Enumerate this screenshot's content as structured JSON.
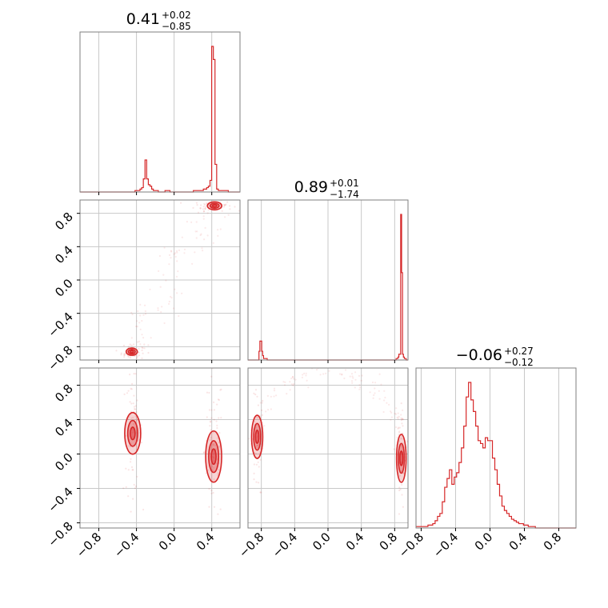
{
  "colors": {
    "series": "#d62728",
    "grid": "#c8c8c8",
    "frame": "#7f7f7f"
  },
  "chart_data": {
    "type": "corner",
    "grid": true,
    "parameters": [
      {
        "title": {
          "median": "0.41",
          "upper": "+0.02",
          "lower": "−0.85"
        },
        "range": [
          -1.0,
          0.7
        ]
      },
      {
        "title": {
          "median": "0.89",
          "upper": "+0.01",
          "lower": "−1.74"
        },
        "range": [
          -0.96,
          0.96
        ]
      },
      {
        "title": {
          "median": "−0.06",
          "upper": "+0.27",
          "lower": "−0.12"
        },
        "range": [
          -0.86,
          1.0
        ]
      }
    ],
    "ticks": {
      "param1": {
        "values": [
          -0.8,
          -0.4,
          0.0,
          0.4
        ],
        "labels": [
          "−0.8",
          "−0.4",
          "0.0",
          "0.4"
        ]
      },
      "param2": {
        "values": [
          -0.8,
          -0.4,
          0.0,
          0.4,
          0.8
        ],
        "labels": [
          "−0.8",
          "−0.4",
          "0.0",
          "0.4",
          "0.8"
        ]
      },
      "param3": {
        "values": [
          -0.8,
          -0.4,
          0.0,
          0.4,
          0.8
        ],
        "labels": [
          "−0.8",
          "−0.4",
          "0.0",
          "0.4",
          "0.8"
        ]
      }
    },
    "histograms": [
      {
        "parameter": 1,
        "x_range": [
          -1.0,
          0.7
        ],
        "counts": [
          0,
          0,
          0,
          0,
          0,
          0,
          0,
          0,
          0,
          0,
          0,
          0,
          0,
          0,
          0,
          0,
          0,
          0,
          0,
          0,
          0,
          0,
          0,
          0,
          0,
          0,
          0,
          0,
          0,
          0,
          0,
          0,
          0,
          1,
          1,
          1,
          2,
          3,
          9,
          22,
          9,
          5,
          4,
          2,
          1,
          1,
          1,
          0,
          0,
          0,
          0,
          1,
          1,
          1,
          0,
          0,
          0,
          0,
          0,
          0,
          0,
          0,
          0,
          0,
          0,
          0,
          0,
          0,
          1,
          1,
          1,
          1,
          1,
          1,
          2,
          2,
          3,
          4,
          8,
          100,
          91,
          19,
          2,
          1,
          1,
          1,
          1,
          1,
          1,
          0,
          0,
          0,
          0,
          0,
          0,
          0
        ]
      },
      {
        "parameter": 2,
        "x_range": [
          -0.96,
          0.96
        ],
        "counts": [
          0,
          0,
          0,
          0,
          0,
          0,
          0,
          0,
          0,
          0,
          0,
          0,
          6,
          13,
          13,
          6,
          3,
          1,
          1,
          1,
          1,
          0,
          0,
          0,
          0,
          0,
          0,
          0,
          0,
          0,
          0,
          0,
          0,
          0,
          0,
          0,
          0,
          0,
          0,
          0,
          0,
          0,
          0,
          0,
          0,
          0,
          0,
          0,
          0,
          0,
          0,
          0,
          0,
          0,
          0,
          0,
          0,
          0,
          0,
          0,
          0,
          0,
          0,
          0,
          0,
          0,
          0,
          0,
          0,
          0,
          0,
          0,
          0,
          0,
          0,
          0,
          0,
          0,
          0,
          0,
          0,
          0,
          0,
          0,
          0,
          0,
          0,
          0,
          0,
          0,
          0,
          0,
          0,
          0,
          0,
          0,
          0,
          0,
          0,
          0,
          0,
          0,
          0,
          0,
          0,
          0,
          0,
          0,
          0,
          0,
          0,
          0,
          0,
          0,
          0,
          0,
          0,
          0,
          0,
          0,
          0,
          0,
          0,
          0,
          0,
          0,
          0,
          0,
          0,
          0,
          0,
          0,
          0,
          0,
          0,
          0,
          0,
          0,
          0,
          0,
          0,
          0,
          0,
          0,
          0,
          0,
          0,
          0,
          0,
          0,
          0,
          0,
          0,
          0,
          0,
          0,
          0,
          0,
          0,
          0,
          0,
          0,
          1,
          1,
          2,
          4,
          4,
          100,
          60,
          4,
          2,
          1,
          1,
          0,
          0
        ]
      },
      {
        "parameter": 3,
        "x_range": [
          -0.86,
          1.0
        ],
        "counts": [
          1,
          1,
          1,
          1,
          1,
          1,
          1,
          1,
          1,
          1,
          2,
          2,
          2,
          2,
          3,
          3,
          5,
          5,
          8,
          8,
          10,
          10,
          18,
          18,
          28,
          28,
          34,
          34,
          40,
          40,
          30,
          30,
          35,
          35,
          38,
          38,
          45,
          45,
          55,
          55,
          70,
          70,
          90,
          90,
          100,
          100,
          88,
          88,
          80,
          80,
          70,
          70,
          60,
          60,
          58,
          58,
          55,
          55,
          62,
          62,
          60,
          60,
          60,
          60,
          48,
          48,
          40,
          40,
          30,
          30,
          22,
          22,
          15,
          15,
          12,
          12,
          10,
          10,
          8,
          8,
          6,
          6,
          5,
          5,
          4,
          4,
          3,
          3,
          3,
          3,
          2,
          2,
          2,
          2,
          1,
          1,
          1,
          1,
          1,
          1,
          0,
          0,
          0,
          0,
          0,
          0,
          0,
          0,
          0,
          0,
          0,
          0,
          0,
          0,
          0,
          0,
          0,
          0,
          0,
          0,
          0,
          0,
          0,
          0,
          0,
          0,
          0,
          0,
          0,
          0,
          0,
          0,
          0,
          0
        ]
      }
    ],
    "modes_2d": [
      {
        "panel": "param1-vs-param2",
        "x": 0.42,
        "y": 0.89
      },
      {
        "panel": "param1-vs-param2",
        "x": -0.44,
        "y": -0.86
      },
      {
        "panel": "param1-vs-param3",
        "x": -0.44,
        "y": 0.24
      },
      {
        "panel": "param1-vs-param3",
        "x": 0.42,
        "y": -0.04
      },
      {
        "panel": "param2-vs-param3",
        "x": -0.85,
        "y": 0.2
      },
      {
        "panel": "param2-vs-param3",
        "x": 0.88,
        "y": -0.05
      }
    ]
  }
}
